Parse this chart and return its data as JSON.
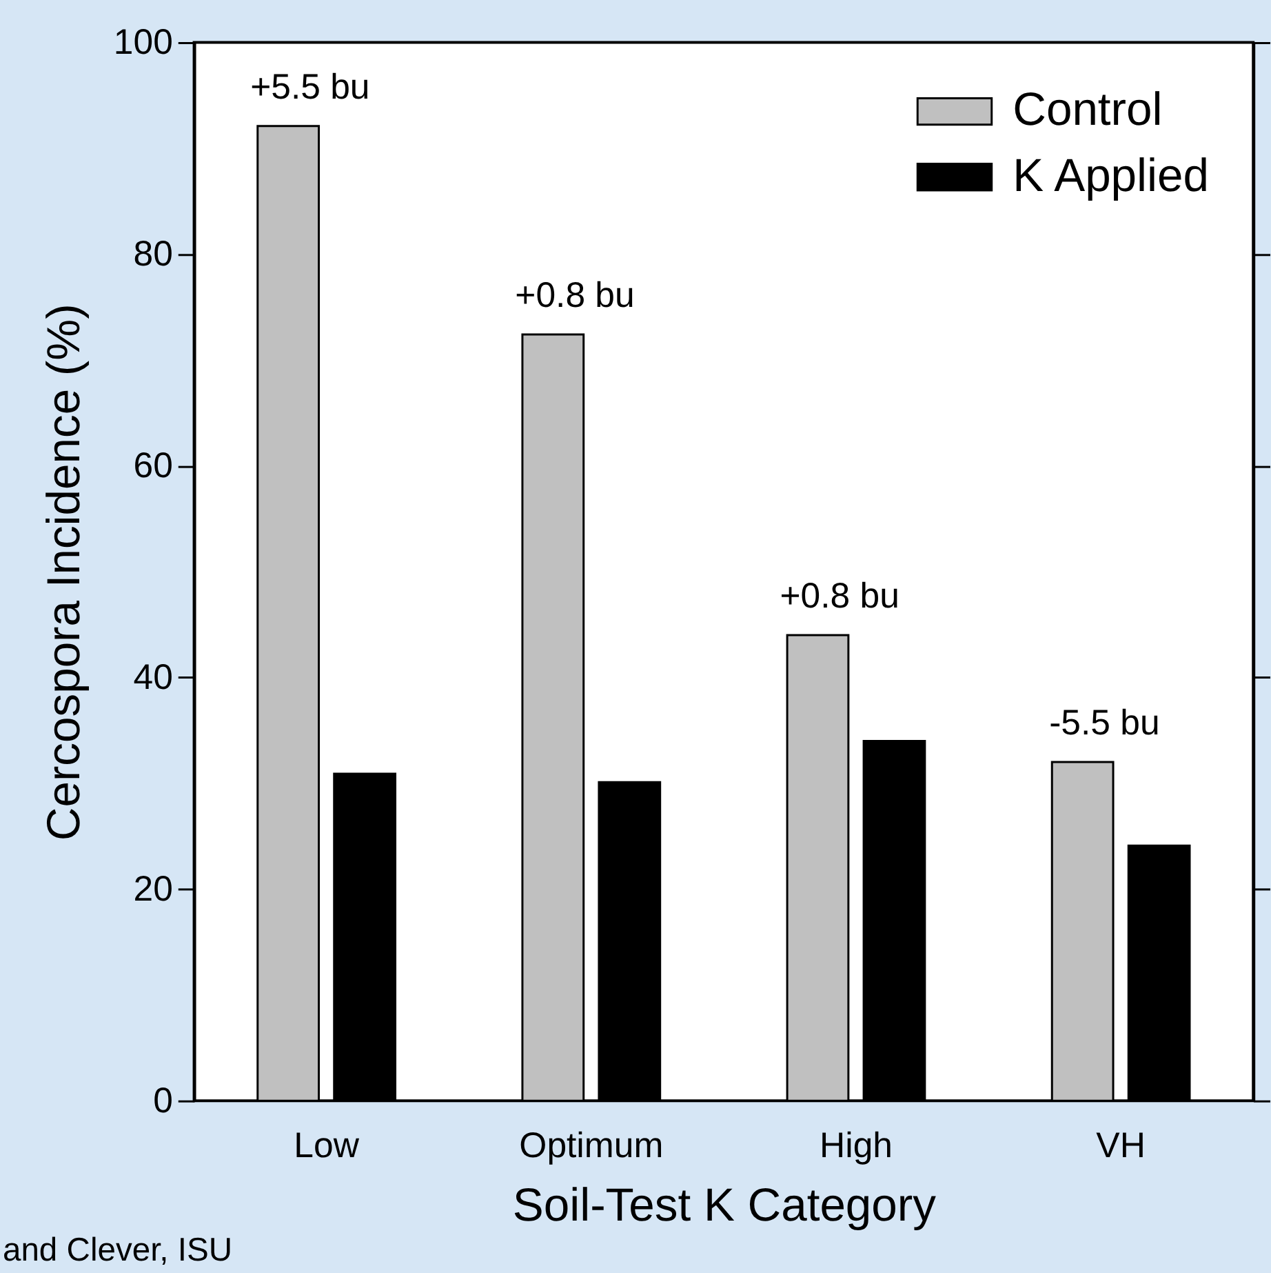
{
  "chart_data": {
    "type": "bar",
    "xlabel": "Soil-Test K Category",
    "ylabel": "Cercospora Incidence (%)",
    "categories": [
      "Low",
      "Optimum",
      "High",
      "VH"
    ],
    "series": [
      {
        "name": "Control",
        "color": "#c0c0c0",
        "values": [
          92.1,
          72.4,
          44.0,
          32.0
        ]
      },
      {
        "name": "K Applied",
        "color": "#000000",
        "values": [
          30.9,
          30.1,
          34.0,
          24.1
        ]
      }
    ],
    "ylim": [
      0,
      100
    ],
    "yticks": [
      0,
      20,
      40,
      60,
      80,
      100
    ],
    "grid": false,
    "legend": "top right",
    "annotations": [
      "+5.5 bu",
      "+0.8 bu",
      "+0.8 bu",
      "-5.5 bu",
      "and Clever, ISU"
    ]
  }
}
